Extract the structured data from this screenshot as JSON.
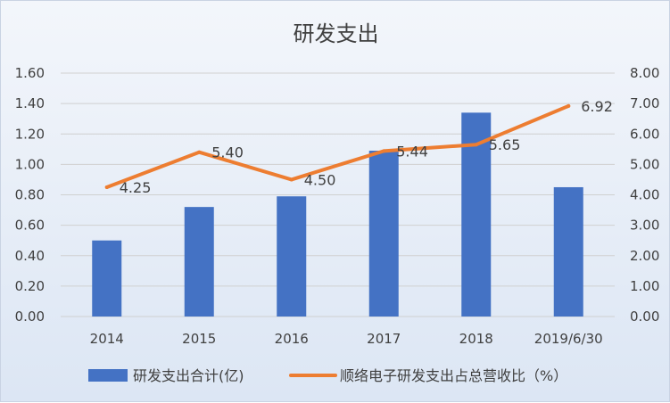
{
  "chart_data": {
    "type": "bar+line",
    "title": "研发支出",
    "categories": [
      "2014",
      "2015",
      "2016",
      "2017",
      "2018",
      "2019/6/30"
    ],
    "series": [
      {
        "name": "研发支出合计(亿)",
        "type": "bar",
        "axis": "left",
        "color": "#4472c4",
        "values": [
          0.5,
          0.72,
          0.79,
          1.09,
          1.34,
          0.85
        ]
      },
      {
        "name": "顺络电子研发支出占总营收比（%）",
        "type": "line",
        "axis": "right",
        "color": "#ed7d31",
        "values": [
          4.25,
          5.4,
          4.5,
          5.44,
          5.65,
          6.92
        ],
        "data_labels": [
          "4.25",
          "5.40",
          "4.50",
          "5.44",
          "5.65",
          "6.92"
        ]
      }
    ],
    "y_left": {
      "min": 0,
      "max": 1.6,
      "ticks": [
        "0.00",
        "0.20",
        "0.40",
        "0.60",
        "0.80",
        "1.00",
        "1.20",
        "1.40",
        "1.60"
      ]
    },
    "y_right": {
      "min": 0,
      "max": 8,
      "ticks": [
        "0.00",
        "1.00",
        "2.00",
        "3.00",
        "4.00",
        "5.00",
        "6.00",
        "7.00",
        "8.00"
      ]
    },
    "grid": true,
    "legend_position": "bottom"
  }
}
